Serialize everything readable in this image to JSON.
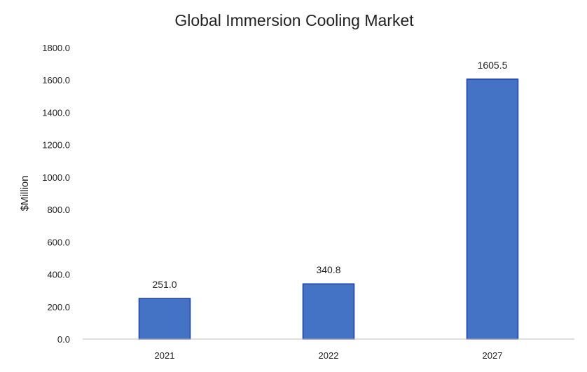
{
  "chart_data": {
    "type": "bar",
    "title": "Global Immersion Cooling Market",
    "categories": [
      "2021",
      "2022",
      "2027"
    ],
    "values": [
      251.0,
      340.8,
      1605.5
    ],
    "data_labels": [
      "251.0",
      "340.8",
      "1605.5"
    ],
    "xlabel": "",
    "ylabel": "$Million",
    "ylim": [
      0,
      1800
    ],
    "yticks": [
      "0.0",
      "200.0",
      "400.0",
      "600.0",
      "800.0",
      "1000.0",
      "1200.0",
      "1400.0",
      "1600.0",
      "1800.0"
    ],
    "grid": false,
    "legend": "none",
    "bar_color": "#4472C4",
    "bar_edge_color": "#1F3FA8"
  }
}
